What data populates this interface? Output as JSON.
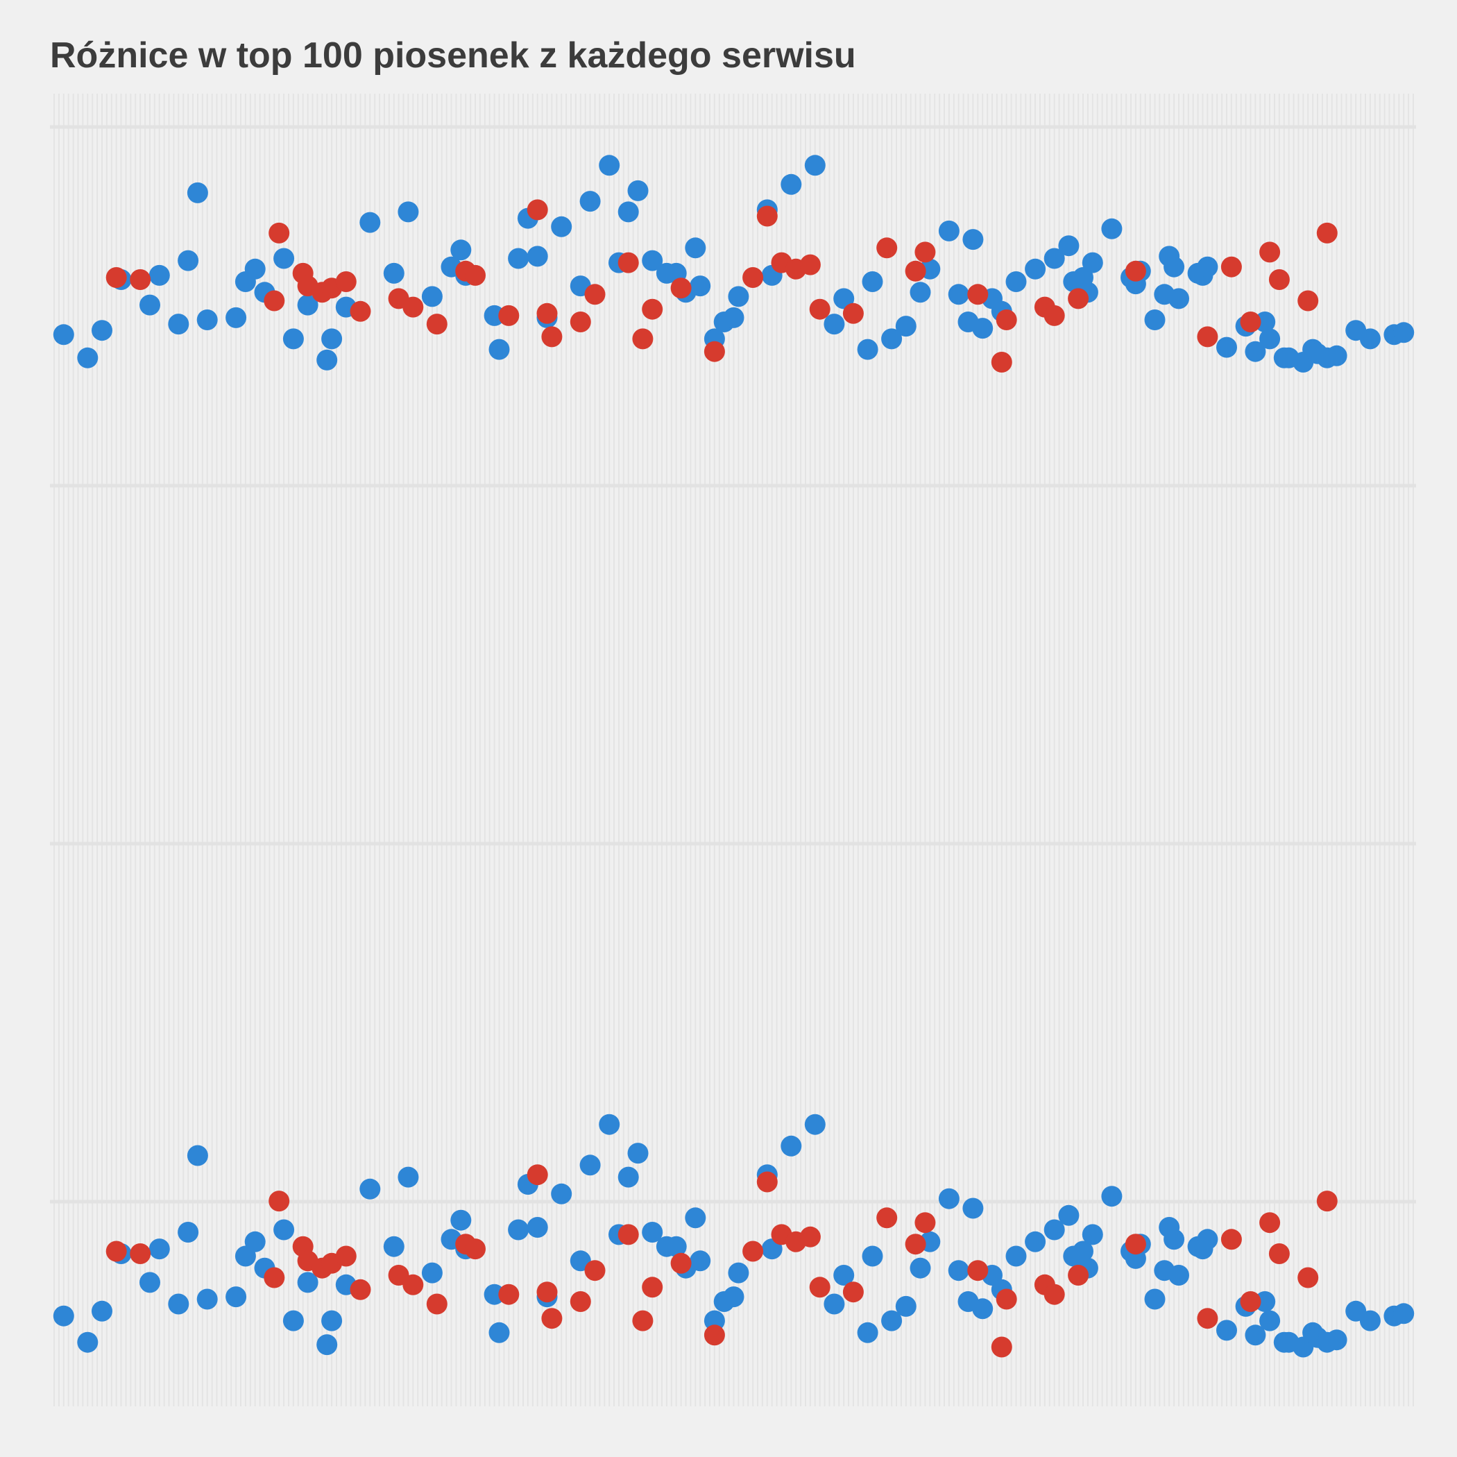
{
  "chart_data": {
    "type": "scatter",
    "title": "Różnice w top 100 piosenek z każdego serwisu",
    "xlabel": "",
    "ylabel": "",
    "grid": true,
    "legend": "none",
    "colors": {
      "blue": "#2e86d6",
      "red": "#d63b2e",
      "background": "#f0f0f0",
      "grid": "#e2e2e2",
      "title": "#3c3c3c"
    },
    "series": [
      {
        "color": "blue",
        "points": [
          [
            2,
            14
          ],
          [
            7,
            3
          ],
          [
            10,
            16
          ],
          [
            14,
            40
          ],
          [
            20,
            28
          ],
          [
            22,
            42
          ],
          [
            26,
            19
          ],
          [
            28,
            49
          ],
          [
            30,
            81
          ],
          [
            32,
            21
          ],
          [
            38,
            22
          ],
          [
            40,
            39
          ],
          [
            42,
            45
          ],
          [
            44,
            34
          ],
          [
            48,
            50
          ],
          [
            50,
            12
          ],
          [
            53,
            28
          ],
          [
            57,
            2
          ],
          [
            58,
            12
          ],
          [
            61,
            27
          ],
          [
            66,
            67
          ],
          [
            71,
            43
          ],
          [
            74,
            72
          ],
          [
            79,
            32
          ],
          [
            83,
            46
          ],
          [
            85,
            54
          ],
          [
            86,
            42
          ],
          [
            92,
            23
          ],
          [
            93,
            7
          ],
          [
            97,
            50
          ],
          [
            99,
            69
          ],
          [
            101,
            51
          ],
          [
            103,
            22
          ],
          [
            106,
            65
          ],
          [
            110,
            37
          ],
          [
            112,
            77
          ],
          [
            116,
            94
          ],
          [
            118,
            48
          ],
          [
            120,
            72
          ],
          [
            122,
            82
          ],
          [
            125,
            49
          ],
          [
            128,
            43
          ],
          [
            130,
            43
          ],
          [
            132,
            34
          ],
          [
            134,
            55
          ],
          [
            135,
            37
          ],
          [
            138,
            12
          ],
          [
            140,
            20
          ],
          [
            142,
            22
          ],
          [
            143,
            32
          ],
          [
            149,
            73
          ],
          [
            150,
            42
          ],
          [
            154,
            85
          ],
          [
            159,
            94
          ],
          [
            163,
            19
          ],
          [
            165,
            31
          ],
          [
            170,
            7
          ],
          [
            171,
            39
          ],
          [
            175,
            12
          ],
          [
            178,
            18
          ],
          [
            181,
            34
          ],
          [
            183,
            45
          ],
          [
            187,
            63
          ],
          [
            189,
            33
          ],
          [
            191,
            20
          ],
          [
            192,
            59
          ],
          [
            194,
            17
          ],
          [
            196,
            31
          ],
          [
            198,
            25
          ],
          [
            201,
            39
          ],
          [
            205,
            45
          ],
          [
            209,
            50
          ],
          [
            212,
            56
          ],
          [
            213,
            39
          ],
          [
            215,
            41
          ],
          [
            216,
            34
          ],
          [
            217,
            48
          ],
          [
            221,
            64
          ],
          [
            225,
            41
          ],
          [
            226,
            38
          ],
          [
            227,
            44
          ],
          [
            230,
            21
          ],
          [
            232,
            33
          ],
          [
            233,
            51
          ],
          [
            234,
            46
          ],
          [
            235,
            31
          ],
          [
            239,
            43
          ],
          [
            240,
            42
          ],
          [
            241,
            46
          ],
          [
            245,
            8
          ],
          [
            249,
            18
          ],
          [
            251,
            6
          ],
          [
            253,
            20
          ],
          [
            254,
            12
          ],
          [
            257,
            3
          ],
          [
            258,
            3
          ],
          [
            261,
            1
          ],
          [
            263,
            7
          ],
          [
            264,
            5
          ],
          [
            266,
            3
          ],
          [
            268,
            4
          ],
          [
            272,
            16
          ],
          [
            275,
            12
          ],
          [
            280,
            14
          ],
          [
            282,
            15
          ]
        ]
      },
      {
        "color": "red",
        "points": [
          [
            13,
            41
          ],
          [
            18,
            40
          ],
          [
            46,
            30
          ],
          [
            47,
            62
          ],
          [
            52,
            43
          ],
          [
            53,
            37
          ],
          [
            56,
            34
          ],
          [
            58,
            36
          ],
          [
            61,
            39
          ],
          [
            64,
            25
          ],
          [
            72,
            31
          ],
          [
            75,
            27
          ],
          [
            80,
            19
          ],
          [
            86,
            44
          ],
          [
            88,
            42
          ],
          [
            95,
            23
          ],
          [
            101,
            73
          ],
          [
            103,
            24
          ],
          [
            104,
            13
          ],
          [
            110,
            20
          ],
          [
            113,
            33
          ],
          [
            120,
            48
          ],
          [
            123,
            12
          ],
          [
            125,
            26
          ],
          [
            131,
            36
          ],
          [
            138,
            6
          ],
          [
            146,
            41
          ],
          [
            149,
            70
          ],
          [
            152,
            48
          ],
          [
            155,
            45
          ],
          [
            158,
            47
          ],
          [
            160,
            26
          ],
          [
            167,
            24
          ],
          [
            174,
            55
          ],
          [
            180,
            44
          ],
          [
            182,
            53
          ],
          [
            193,
            33
          ],
          [
            198,
            1
          ],
          [
            199,
            21
          ],
          [
            207,
            27
          ],
          [
            209,
            23
          ],
          [
            214,
            31
          ],
          [
            226,
            44
          ],
          [
            241,
            13
          ],
          [
            246,
            46
          ],
          [
            250,
            20
          ],
          [
            254,
            53
          ],
          [
            256,
            40
          ],
          [
            262,
            30
          ],
          [
            266,
            62
          ]
        ]
      }
    ]
  }
}
